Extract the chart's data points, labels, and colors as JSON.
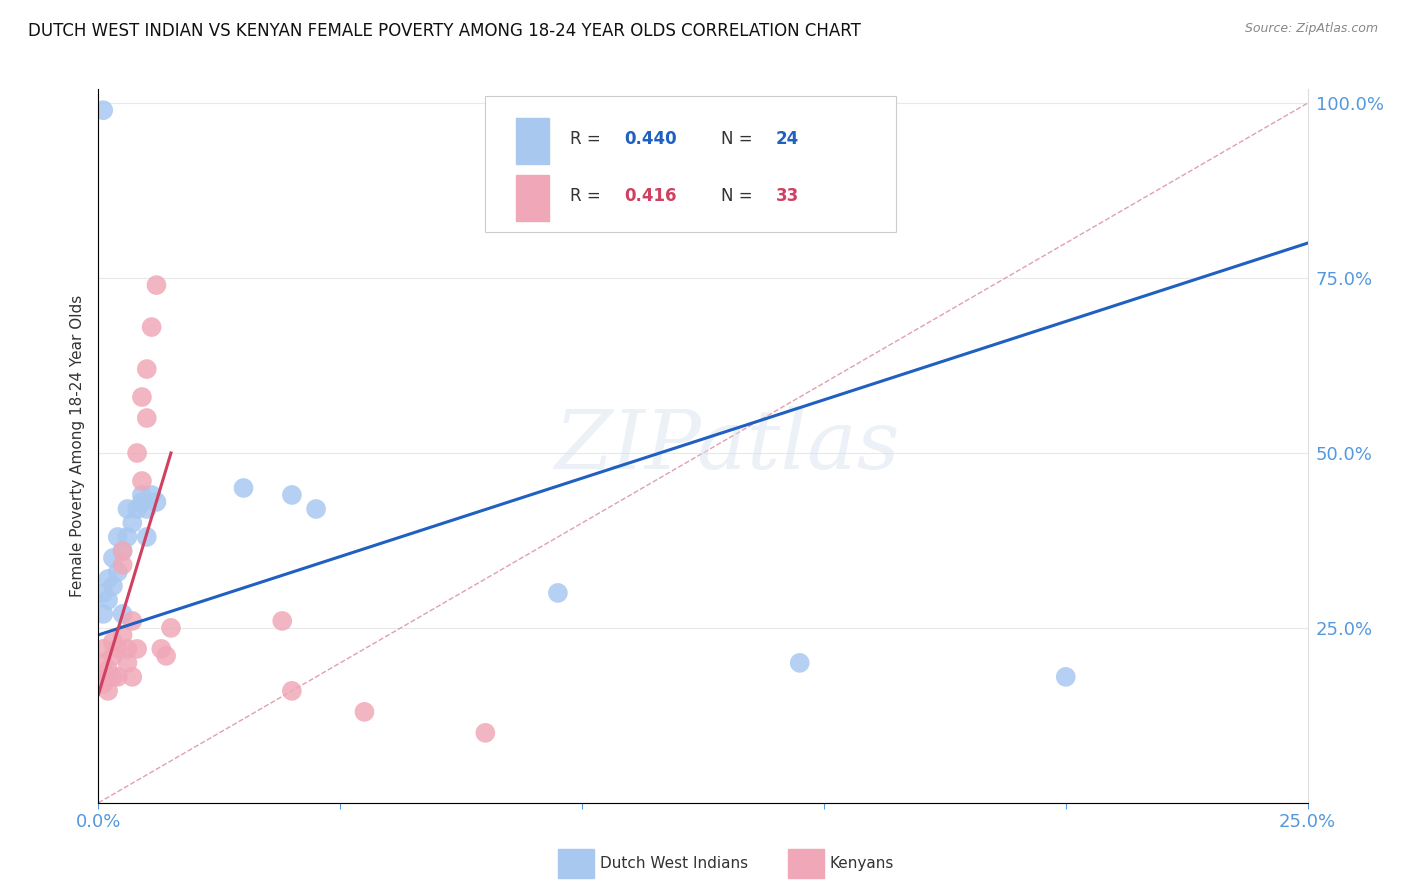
{
  "title": "DUTCH WEST INDIAN VS KENYAN FEMALE POVERTY AMONG 18-24 YEAR OLDS CORRELATION CHART",
  "source": "Source: ZipAtlas.com",
  "ylabel": "Female Poverty Among 18-24 Year Olds",
  "blue_color": "#a8c8f0",
  "pink_color": "#f0a8b8",
  "blue_line_color": "#2060c0",
  "pink_line_color": "#d04060",
  "ref_line_color": "#e0a0b0",
  "axis_label_color": "#5599dd",
  "watermark": "ZIPatlas",
  "blue_dots_x": [
    0.001,
    0.001,
    0.002,
    0.002,
    0.003,
    0.003,
    0.004,
    0.004,
    0.005,
    0.005,
    0.006,
    0.006,
    0.007,
    0.008,
    0.009,
    0.009,
    0.01,
    0.01,
    0.011,
    0.012,
    0.04,
    0.045,
    0.095,
    0.145,
    0.2,
    0.001,
    0.03
  ],
  "blue_dots_y": [
    0.27,
    0.3,
    0.29,
    0.32,
    0.31,
    0.35,
    0.33,
    0.38,
    0.27,
    0.36,
    0.38,
    0.42,
    0.4,
    0.42,
    0.43,
    0.44,
    0.42,
    0.38,
    0.44,
    0.43,
    0.44,
    0.42,
    0.3,
    0.2,
    0.18,
    0.99,
    0.45
  ],
  "pink_dots_x": [
    0.001,
    0.001,
    0.001,
    0.002,
    0.002,
    0.002,
    0.003,
    0.003,
    0.003,
    0.004,
    0.004,
    0.005,
    0.005,
    0.005,
    0.006,
    0.006,
    0.007,
    0.007,
    0.008,
    0.008,
    0.009,
    0.009,
    0.01,
    0.01,
    0.011,
    0.012,
    0.013,
    0.014,
    0.015,
    0.038,
    0.04,
    0.055,
    0.08
  ],
  "pink_dots_y": [
    0.2,
    0.22,
    0.17,
    0.18,
    0.19,
    0.16,
    0.21,
    0.23,
    0.18,
    0.22,
    0.18,
    0.34,
    0.36,
    0.24,
    0.22,
    0.2,
    0.26,
    0.18,
    0.22,
    0.5,
    0.46,
    0.58,
    0.55,
    0.62,
    0.68,
    0.74,
    0.22,
    0.21,
    0.25,
    0.26,
    0.16,
    0.13,
    0.1
  ],
  "blue_line_x": [
    0.0,
    0.25
  ],
  "blue_line_y": [
    0.24,
    0.8
  ],
  "pink_line_x": [
    0.0,
    0.015
  ],
  "pink_line_y": [
    0.155,
    0.5
  ],
  "ref_line_x": [
    0.0,
    0.25
  ],
  "ref_line_y": [
    0.0,
    1.0
  ],
  "xlim": [
    0,
    0.25
  ],
  "ylim": [
    0,
    1.02
  ],
  "background_color": "#ffffff",
  "grid_color": "#e8e8e8"
}
